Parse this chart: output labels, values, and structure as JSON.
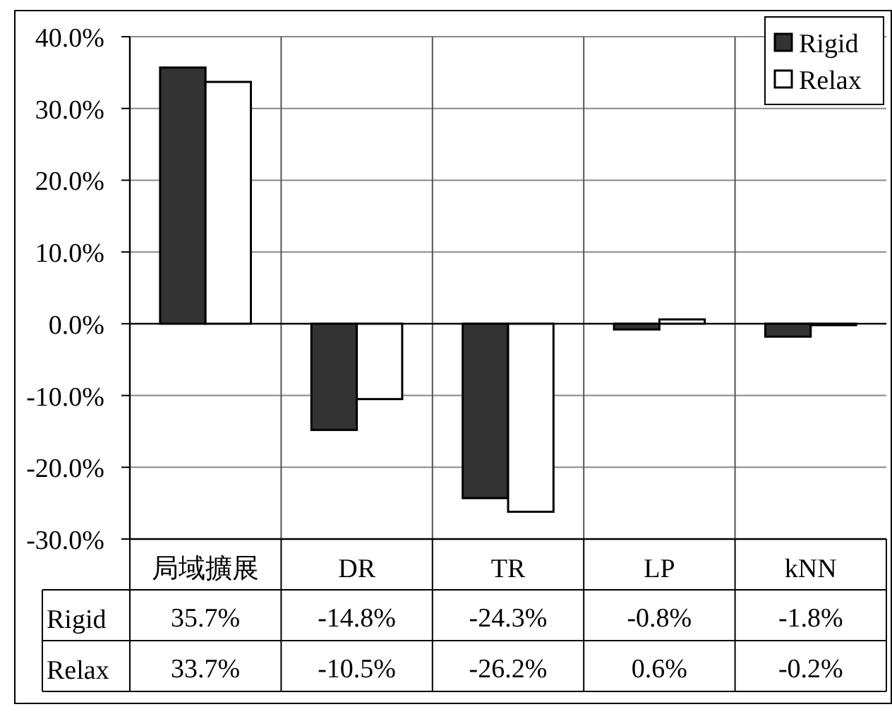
{
  "chart_data": {
    "type": "bar",
    "categories": [
      "局域擴展",
      "DR",
      "TR",
      "LP",
      "kNN"
    ],
    "series": [
      {
        "name": "Rigid",
        "color": "#333333",
        "values": [
          35.7,
          -14.8,
          -24.3,
          -0.8,
          -1.8
        ],
        "value_labels": [
          "35.7%",
          "-14.8%",
          "-24.3%",
          "-0.8%",
          "-1.8%"
        ]
      },
      {
        "name": "Relax",
        "color": "#ffffff",
        "values": [
          33.7,
          -10.5,
          -26.2,
          0.6,
          -0.2
        ],
        "value_labels": [
          "33.7%",
          "-10.5%",
          "-26.2%",
          "0.6%",
          "-0.2%"
        ]
      }
    ],
    "ylim": [
      -30,
      40
    ],
    "yticks": [
      {
        "value": -30,
        "label": "-30.0%"
      },
      {
        "value": -20,
        "label": "-20.0%"
      },
      {
        "value": -10,
        "label": "-10.0%"
      },
      {
        "value": 0,
        "label": "0.0%"
      },
      {
        "value": 10,
        "label": "10.0%"
      },
      {
        "value": 20,
        "label": "20.0%"
      },
      {
        "value": 30,
        "label": "30.0%"
      },
      {
        "value": 40,
        "label": "40.0%"
      }
    ],
    "grid": true,
    "legend": "top right"
  }
}
